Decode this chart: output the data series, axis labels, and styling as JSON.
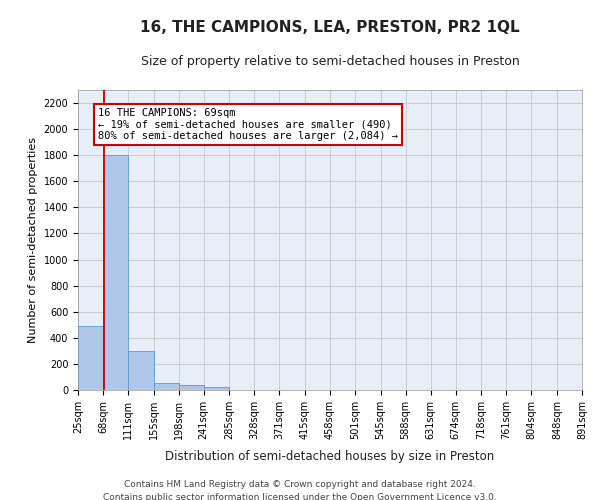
{
  "title": "16, THE CAMPIONS, LEA, PRESTON, PR2 1QL",
  "subtitle": "Size of property relative to semi-detached houses in Preston",
  "xlabel": "Distribution of semi-detached houses by size in Preston",
  "ylabel": "Number of semi-detached properties",
  "footer_line1": "Contains HM Land Registry data © Crown copyright and database right 2024.",
  "footer_line2": "Contains public sector information licensed under the Open Government Licence v3.0.",
  "bin_edges": [
    25,
    68,
    111,
    155,
    198,
    241,
    285,
    328,
    371,
    415,
    458,
    501,
    545,
    588,
    631,
    674,
    718,
    761,
    804,
    848,
    891
  ],
  "bar_heights": [
    490,
    1800,
    300,
    50,
    40,
    25,
    0,
    0,
    0,
    0,
    0,
    0,
    0,
    0,
    0,
    0,
    0,
    0,
    0,
    0
  ],
  "bar_color": "#aec6e8",
  "bar_edge_color": "#5b9bd5",
  "property_size": 69,
  "red_line_color": "#cc0000",
  "annotation_line1": "16 THE CAMPIONS: 69sqm",
  "annotation_line2": "← 19% of semi-detached houses are smaller (490)",
  "annotation_line3": "80% of semi-detached houses are larger (2,084) →",
  "annotation_box_color": "#ffffff",
  "annotation_box_edge": "#cc0000",
  "ylim": [
    0,
    2300
  ],
  "yticks": [
    0,
    200,
    400,
    600,
    800,
    1000,
    1200,
    1400,
    1600,
    1800,
    2000,
    2200
  ],
  "grid_color": "#cccccc",
  "background_color": "#e8eef8",
  "title_fontsize": 11,
  "subtitle_fontsize": 9,
  "tick_label_fontsize": 7,
  "ylabel_fontsize": 8,
  "xlabel_fontsize": 8.5,
  "footer_fontsize": 6.5,
  "annotation_fontsize": 7.5
}
